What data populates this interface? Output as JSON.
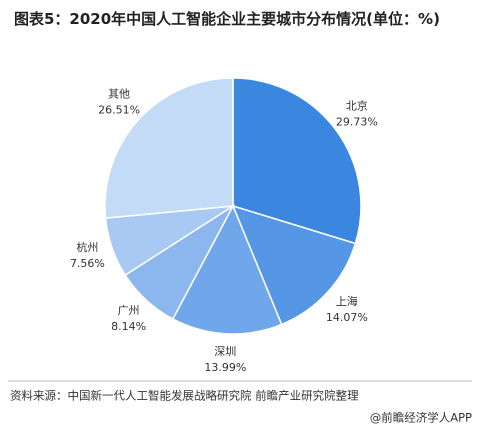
{
  "chart_data": {
    "type": "pie",
    "title": "图表5：2020年中国人工智能企业主要城市分布情况(单位：%)",
    "categories": [
      "北京",
      "上海",
      "深圳",
      "广州",
      "杭州",
      "其他"
    ],
    "values": [
      29.73,
      14.07,
      13.99,
      8.14,
      7.56,
      26.51
    ],
    "value_labels": [
      "29.73%",
      "14.07%",
      "13.99%",
      "8.14%",
      "7.56%",
      "26.51%"
    ],
    "colors": [
      "#3b86df",
      "#5697e5",
      "#70a6ea",
      "#8bb7ee",
      "#a7c9f3",
      "#c3dbf7"
    ],
    "source": "资料来源：中国新一代人工智能发展战略研究院 前瞻产业研究院整理",
    "credit": "@前瞻经济学人APP"
  }
}
